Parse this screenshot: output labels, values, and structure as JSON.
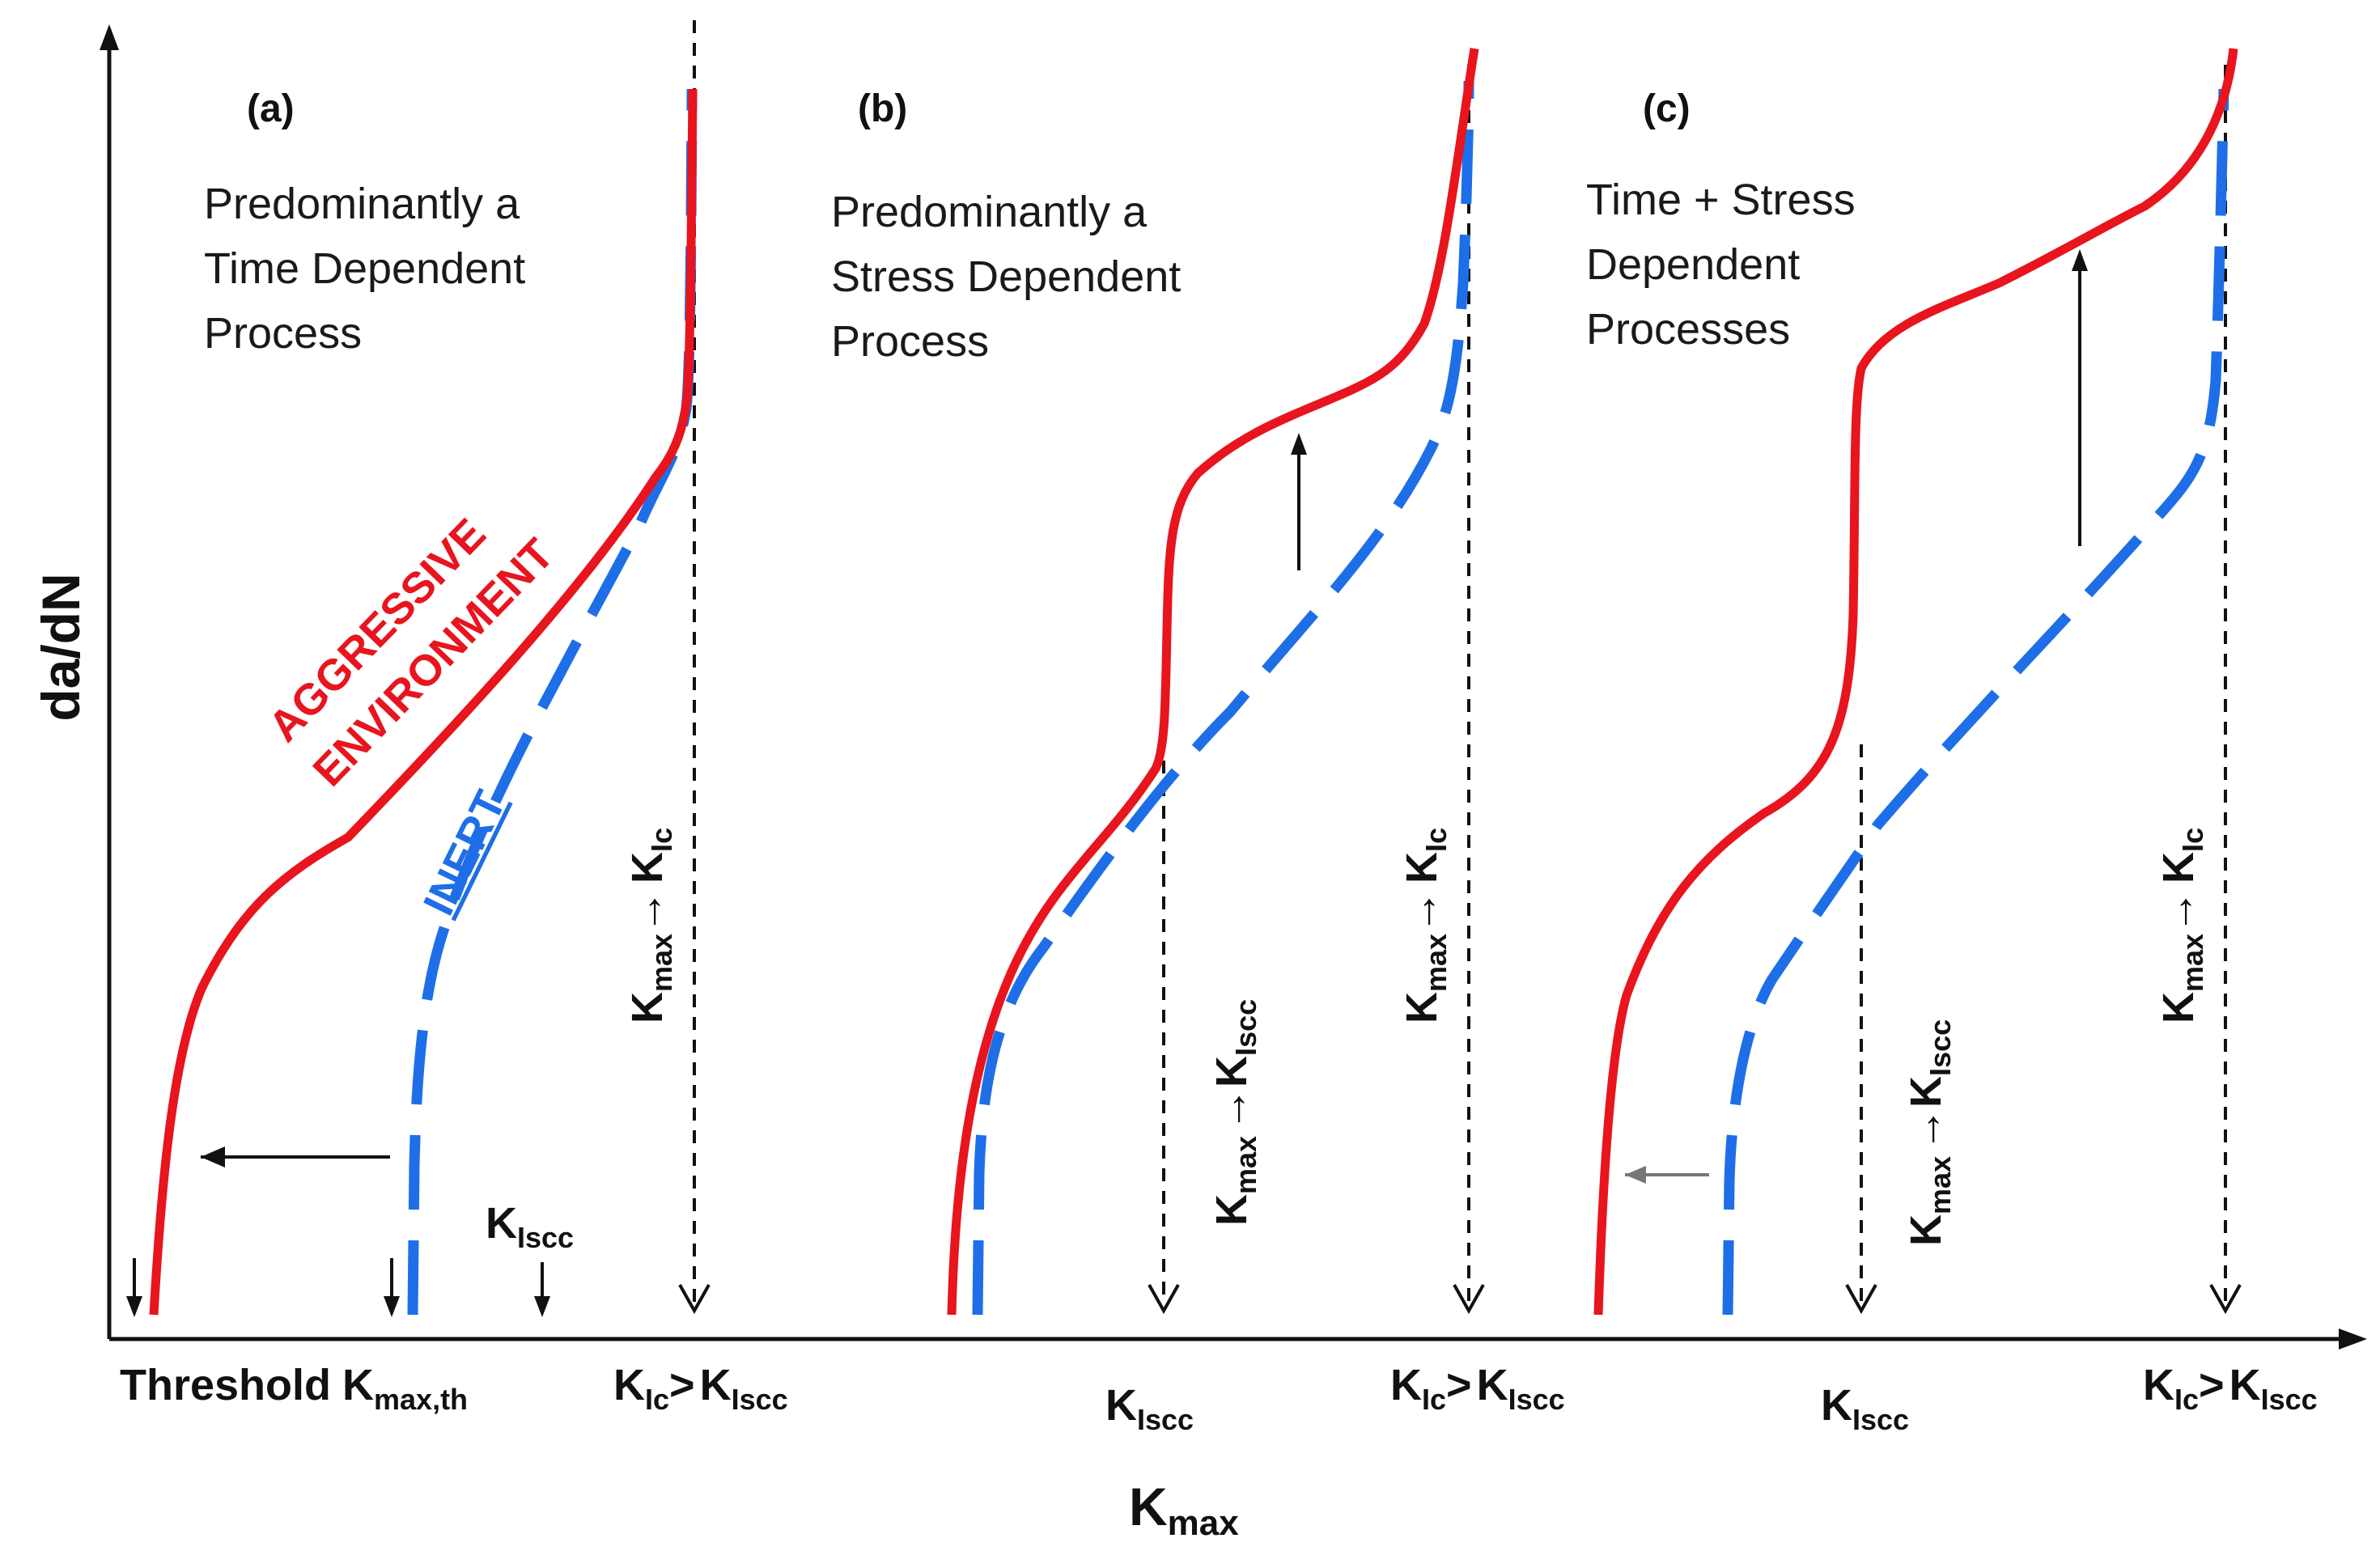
{
  "axes": {
    "y_label": "da/dN",
    "x_label_main": "K",
    "x_label_sub": "max"
  },
  "colors": {
    "aggressive": "#e8141e",
    "inert": "#1e6ee8",
    "axis": "#111111"
  },
  "curve_labels": {
    "aggressive_line1": "AGGRESSIVE",
    "aggressive_line2": "ENVIRONMENT",
    "inert": "INERT"
  },
  "panels": [
    {
      "letter": "(a)",
      "desc": [
        "Predominantly a",
        "Time Dependent",
        "Process"
      ]
    },
    {
      "letter": "(b)",
      "desc": [
        "Predominantly a",
        "Stress Dependent",
        "Process"
      ]
    },
    {
      "letter": "(c)",
      "desc": [
        "Time + Stress",
        "Dependent",
        "Processes"
      ]
    }
  ],
  "symbols": {
    "K": "K",
    "sub_max": "max",
    "sub_Ic": "Ic",
    "sub_Iscc": "Iscc",
    "sub_max_th": "max,th",
    "arrow": "→",
    "gt": ">",
    "threshold_word": "Threshold"
  }
}
